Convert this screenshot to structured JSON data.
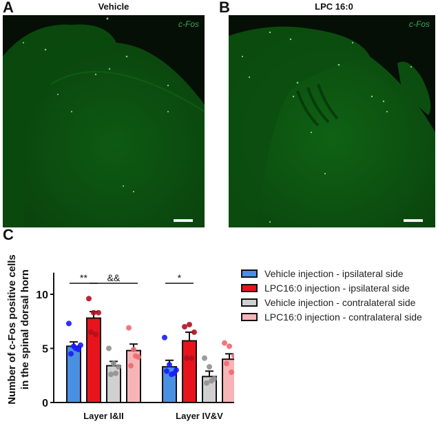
{
  "panels": {
    "A": {
      "letter": "A",
      "title": "Vehicle",
      "stain_label": "c-Fos"
    },
    "B": {
      "letter": "B",
      "title": "LPC 16:0",
      "stain_label": "c-Fos"
    },
    "C": {
      "letter": "C"
    }
  },
  "legend": [
    {
      "label": "Vehicle injection - ipsilateral side",
      "color": "#4a90e2"
    },
    {
      "label": "LPC16:0 injection - ipsilateral side",
      "color": "#e8141c"
    },
    {
      "label": "Vehicle injection - contralateral side",
      "color": "#d0d0d0"
    },
    {
      "label": "LPC16:0 injection - contralateral side",
      "color": "#f7b4b6"
    }
  ],
  "chart_data": {
    "type": "bar",
    "title": "",
    "xlabel": "",
    "ylabel": "Number of c-Fos positive cells in the spinal dorsal horn",
    "ylabel_lines": [
      "Number of c-Fos positive cells",
      "in the spinal dorsal horn"
    ],
    "ylim": [
      0,
      12
    ],
    "yticks": [
      0,
      5,
      10
    ],
    "categories": [
      "Layer I&II",
      "Layer IV&V"
    ],
    "series": [
      {
        "name": "Vehicle injection - ipsilateral side",
        "color": "#4a90e2",
        "dot_color": "#1a1aff",
        "values": [
          5.2,
          3.3
        ],
        "sem": [
          0.4,
          0.6
        ],
        "points": [
          [
            7.3,
            5.2,
            4.9,
            4.5,
            5.0,
            5.3
          ],
          [
            6.0,
            3.5,
            2.7,
            2.9,
            2.6,
            3.0
          ]
        ]
      },
      {
        "name": "LPC16:0 injection - ipsilateral side",
        "color": "#e8141c",
        "dot_color": "#b01020",
        "values": [
          7.8,
          5.7
        ],
        "sem": [
          0.6,
          0.8
        ],
        "points": [
          [
            9.6,
            8.3,
            8.3,
            6.5,
            6.3
          ],
          [
            7.0,
            7.2,
            6.5,
            4.1,
            4.1
          ]
        ]
      },
      {
        "name": "Vehicle injection - contralateral side",
        "color": "#d0d0d0",
        "dot_color": "#909090",
        "values": [
          3.4,
          2.4
        ],
        "sem": [
          0.4,
          0.5
        ],
        "points": [
          [
            5.0,
            3.6,
            3.3,
            2.6,
            2.7
          ],
          [
            4.1,
            3.3,
            2.2,
            1.8,
            2.0
          ]
        ]
      },
      {
        "name": "LPC16:0 injection - contralateral side",
        "color": "#f7b4b6",
        "dot_color": "#f06870",
        "values": [
          4.8,
          4.0
        ],
        "sem": [
          0.6,
          0.5
        ],
        "points": [
          [
            6.9,
            4.9,
            4.2,
            3.4,
            4.3
          ],
          [
            5.5,
            5.2,
            4.3,
            3.6,
            2.8
          ]
        ]
      }
    ],
    "annotations": [
      {
        "text": "**",
        "group": 0,
        "from_series": 0,
        "to_series": 1
      },
      {
        "text": "&&",
        "group": 0,
        "from_series": 1,
        "to_series": 3
      },
      {
        "text": "*",
        "group": 1,
        "from_series": 0,
        "to_series": 1
      }
    ],
    "grid": false,
    "legend_position": "right"
  }
}
